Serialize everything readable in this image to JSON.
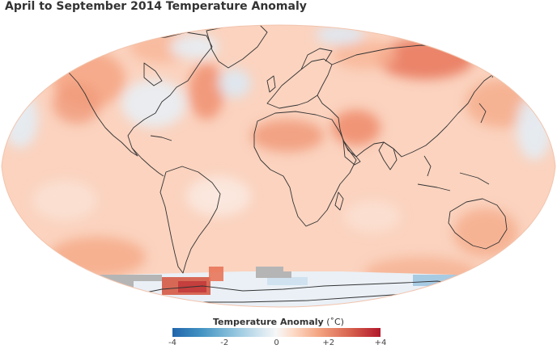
{
  "title": "April to September 2014 Temperature Anomaly",
  "legend": {
    "label": "Temperature Anomaly",
    "unit": "(˚C)",
    "ticks": [
      "-4",
      "-2",
      "0",
      "+2",
      "+4"
    ],
    "range": [
      -4,
      4
    ]
  },
  "colors": {
    "ocean_base": "#fbd3bf",
    "cold_strong": "#2166ac",
    "cold": "#92c5de",
    "neutral": "#f7f7f7",
    "warm": "#f4a582",
    "warm_strong": "#b2182b",
    "no_data": "#b5b5b5"
  }
}
